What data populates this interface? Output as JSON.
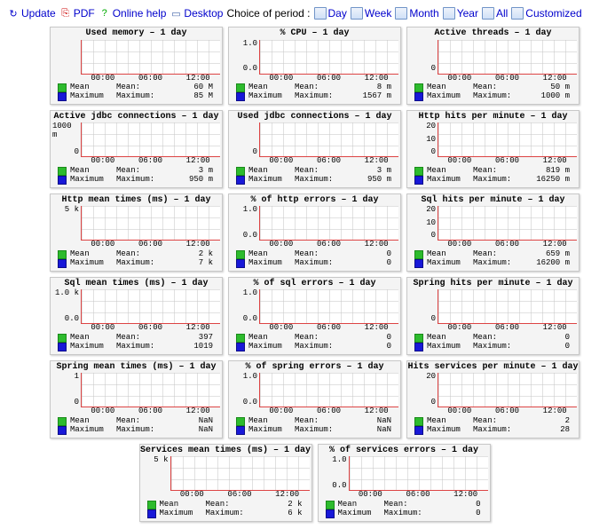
{
  "toolbar": {
    "update": "Update",
    "pdf": "PDF",
    "help": "Online help",
    "desktop": "Desktop",
    "choice_label": "Choice of period :",
    "periods": [
      "Day",
      "Week",
      "Month",
      "Year",
      "All",
      "Customized"
    ]
  },
  "colors": {
    "mean": "#2dbb2d",
    "max": "#1818d8",
    "grid": "#c8c8c8",
    "axis": "#d44",
    "card_bg": "#f4f4f4",
    "card_border": "#c8c8c8"
  },
  "legend_labels": {
    "mean_name": "Mean",
    "max_name": "Maximum",
    "mean_stat": "Mean:",
    "max_stat": "Maximum:"
  },
  "xticks": [
    "00:00",
    "06:00",
    "12:00"
  ],
  "charts": [
    {
      "title": "Used memory – 1 day",
      "yticks": [
        ""
      ],
      "mean": "60 M",
      "max": "85 M",
      "pattern": "dense"
    },
    {
      "title": "% CPU – 1 day",
      "yticks": [
        "1.0",
        "0.0"
      ],
      "mean": "8 m",
      "max": "1567 m",
      "pattern": "rightspike"
    },
    {
      "title": "Active threads – 1 day",
      "yticks": [
        "",
        "0"
      ],
      "mean": "50 m",
      "max": "1000 m",
      "pattern": "rowlow"
    },
    {
      "title": "Active jdbc connections – 1 day",
      "yticks": [
        "1000 m",
        "0"
      ],
      "mean": "3 m",
      "max": "950 m",
      "pattern": "singlespike"
    },
    {
      "title": "Used jdbc connections – 1 day",
      "yticks": [
        "",
        "0"
      ],
      "mean": "3 m",
      "max": "950 m",
      "pattern": "rightspike"
    },
    {
      "title": "Http hits per minute – 1 day",
      "yticks": [
        "20",
        "10",
        "0"
      ],
      "mean": "819 m",
      "max": "16250 m",
      "pattern": "cluster"
    },
    {
      "title": "Http mean times (ms) – 1 day",
      "yticks": [
        "5 k",
        ""
      ],
      "mean": "2 k",
      "max": "7 k",
      "pattern": "rowmid"
    },
    {
      "title": "% of http errors – 1 day",
      "yticks": [
        "1.0",
        "0.0"
      ],
      "mean": "0",
      "max": "0",
      "pattern": "flat"
    },
    {
      "title": "Sql hits per minute – 1 day",
      "yticks": [
        "20",
        "10",
        "0"
      ],
      "mean": "659 m",
      "max": "16200 m",
      "pattern": "cluster"
    },
    {
      "title": "Sql mean times (ms) – 1 day",
      "yticks": [
        "1.0 k",
        "0.0"
      ],
      "mean": "397",
      "max": "1019",
      "pattern": "rowmid"
    },
    {
      "title": "% of sql errors – 1 day",
      "yticks": [
        "1.0",
        "0.0"
      ],
      "mean": "0",
      "max": "0",
      "pattern": "flat"
    },
    {
      "title": "Spring hits per minute – 1 day",
      "yticks": [
        "",
        "0"
      ],
      "mean": "0",
      "max": "0",
      "pattern": "singlespike"
    },
    {
      "title": "Spring mean times (ms) – 1 day",
      "yticks": [
        "1",
        "0"
      ],
      "mean": "NaN",
      "max": "NaN",
      "pattern": "flat"
    },
    {
      "title": "% of spring errors – 1 day",
      "yticks": [
        "1.0",
        "0.0"
      ],
      "mean": "NaN",
      "max": "NaN",
      "pattern": "flat"
    },
    {
      "title": "Hits services per minute – 1 day",
      "yticks": [
        "20",
        "",
        "0"
      ],
      "mean": "2",
      "max": "28",
      "pattern": "cluster"
    },
    {
      "title": "Services mean times (ms) – 1 day",
      "yticks": [
        "5 k",
        ""
      ],
      "mean": "2 k",
      "max": "6 k",
      "pattern": "midspike"
    },
    {
      "title": "% of services errors – 1 day",
      "yticks": [
        "1.0",
        "0.0"
      ],
      "mean": "0",
      "max": "0",
      "pattern": "flat"
    }
  ]
}
